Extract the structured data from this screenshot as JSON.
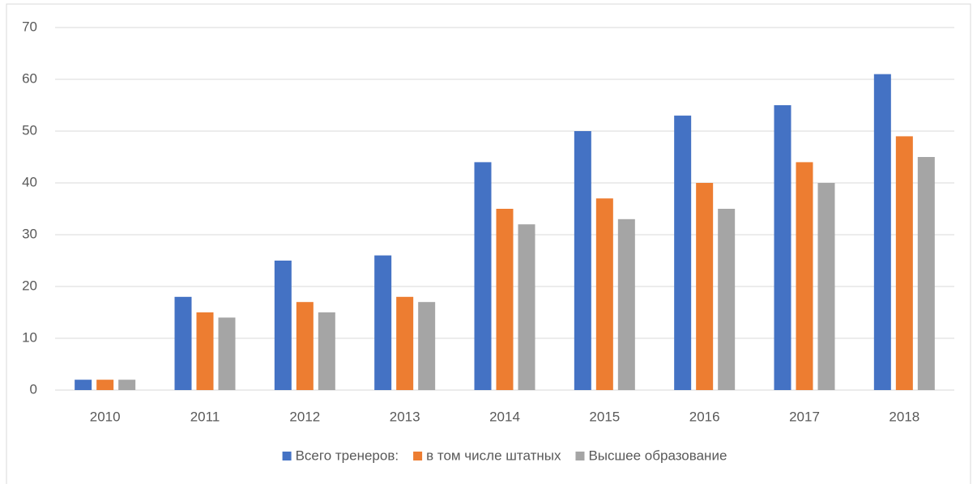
{
  "chart_data": {
    "type": "bar",
    "categories": [
      "2010",
      "2011",
      "2012",
      "2013",
      "2014",
      "2015",
      "2016",
      "2017",
      "2018"
    ],
    "series": [
      {
        "name": "Всего тренеров:",
        "color": "#4472c4",
        "values": [
          2,
          18,
          25,
          26,
          44,
          50,
          53,
          55,
          61
        ]
      },
      {
        "name": "в том числе штатных",
        "color": "#ed7d31",
        "values": [
          2,
          15,
          17,
          18,
          35,
          37,
          40,
          44,
          49
        ]
      },
      {
        "name": "Высшее образование",
        "color": "#a5a5a5",
        "values": [
          2,
          14,
          15,
          17,
          32,
          33,
          35,
          40,
          45
        ]
      }
    ],
    "ylim": [
      0,
      70
    ],
    "yticks": [
      0,
      10,
      20,
      30,
      40,
      50,
      60,
      70
    ],
    "grid": true,
    "legend": "bottom"
  }
}
